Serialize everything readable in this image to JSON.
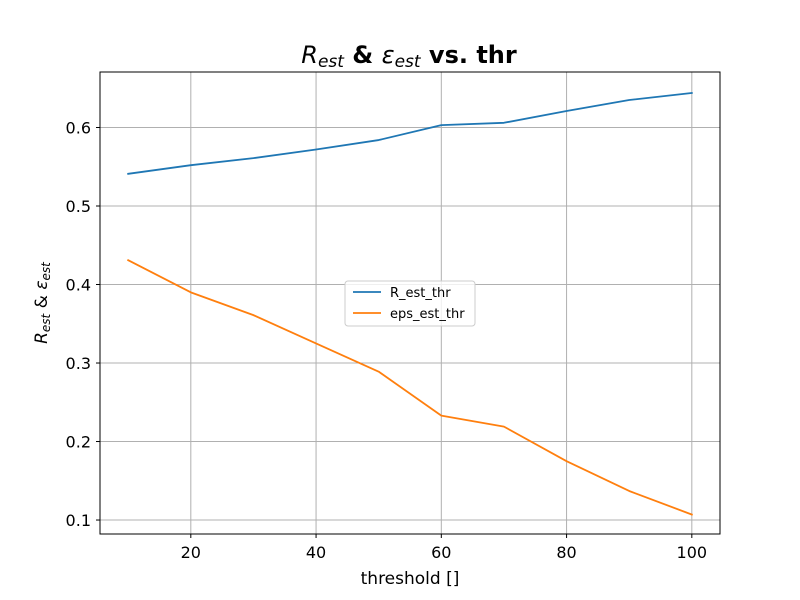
{
  "chart_data": {
    "type": "line",
    "title_parts": [
      {
        "text": "R",
        "style": "italic",
        "role": "symbol"
      },
      {
        "text": "est",
        "style": "italic",
        "role": "sub"
      },
      {
        "text": " & ",
        "style": "bold",
        "role": "normal"
      },
      {
        "text": "ε",
        "style": "italic",
        "role": "symbol"
      },
      {
        "text": "est",
        "style": "italic",
        "role": "sub"
      },
      {
        "text": " vs. thr",
        "style": "bold",
        "role": "normal"
      }
    ],
    "xlabel": "threshold []",
    "ylabel_parts": [
      {
        "text": "R",
        "role": "symbol"
      },
      {
        "text": "est",
        "role": "sub"
      },
      {
        "text": " & ",
        "role": "normal"
      },
      {
        "text": "ε",
        "role": "symbol"
      },
      {
        "text": "est",
        "role": "sub"
      }
    ],
    "x": [
      10,
      20,
      30,
      40,
      50,
      60,
      70,
      80,
      90,
      100
    ],
    "series": [
      {
        "name": "R_est_thr",
        "color": "#1f77b4",
        "values": [
          0.541,
          0.552,
          0.561,
          0.572,
          0.584,
          0.603,
          0.606,
          0.621,
          0.635,
          0.644
        ]
      },
      {
        "name": "eps_est_thr",
        "color": "#ff7f0e",
        "values": [
          0.431,
          0.39,
          0.361,
          0.325,
          0.289,
          0.233,
          0.219,
          0.175,
          0.137,
          0.107
        ]
      }
    ],
    "xlim": [
      5.5,
      104.5
    ],
    "ylim": [
      0.0822,
      0.6707
    ],
    "xticks": [
      20,
      40,
      60,
      80,
      100
    ],
    "yticks": [
      0.1,
      0.2,
      0.3,
      0.4,
      0.5,
      0.6
    ],
    "xtick_labels": [
      "20",
      "40",
      "60",
      "80",
      "100"
    ],
    "ytick_labels": [
      "0.1",
      "0.2",
      "0.3",
      "0.4",
      "0.5",
      "0.6"
    ],
    "grid": true,
    "legend_placement": "center"
  }
}
